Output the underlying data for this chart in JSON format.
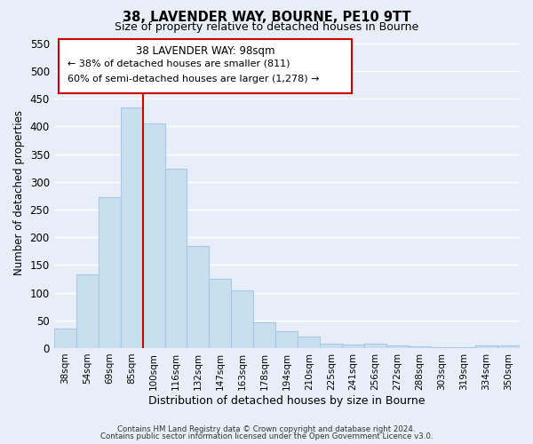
{
  "title": "38, LAVENDER WAY, BOURNE, PE10 9TT",
  "subtitle": "Size of property relative to detached houses in Bourne",
  "xlabel": "Distribution of detached houses by size in Bourne",
  "ylabel": "Number of detached properties",
  "bar_labels": [
    "38sqm",
    "54sqm",
    "69sqm",
    "85sqm",
    "100sqm",
    "116sqm",
    "132sqm",
    "147sqm",
    "163sqm",
    "178sqm",
    "194sqm",
    "210sqm",
    "225sqm",
    "241sqm",
    "256sqm",
    "272sqm",
    "288sqm",
    "303sqm",
    "319sqm",
    "334sqm",
    "350sqm"
  ],
  "bar_values": [
    35,
    133,
    273,
    435,
    405,
    323,
    184,
    125,
    104,
    46,
    30,
    20,
    8,
    7,
    8,
    4,
    3,
    2,
    2,
    5,
    5
  ],
  "bar_color": "#c8dff0",
  "bar_edge_color": "#a8c8e8",
  "vline_color": "#cc0000",
  "ylim": [
    0,
    560
  ],
  "yticks": [
    0,
    50,
    100,
    150,
    200,
    250,
    300,
    350,
    400,
    450,
    500,
    550
  ],
  "annotation_title": "38 LAVENDER WAY: 98sqm",
  "annotation_line1": "← 38% of detached houses are smaller (811)",
  "annotation_line2": "60% of semi-detached houses are larger (1,278) →",
  "box_color": "#ffffff",
  "box_edge_color": "#cc0000",
  "footer_line1": "Contains HM Land Registry data © Crown copyright and database right 2024.",
  "footer_line2": "Contains public sector information licensed under the Open Government Licence v3.0.",
  "background_color": "#e8eef8",
  "grid_color": "#ffffff",
  "title_fontsize": 10.5,
  "subtitle_fontsize": 9
}
